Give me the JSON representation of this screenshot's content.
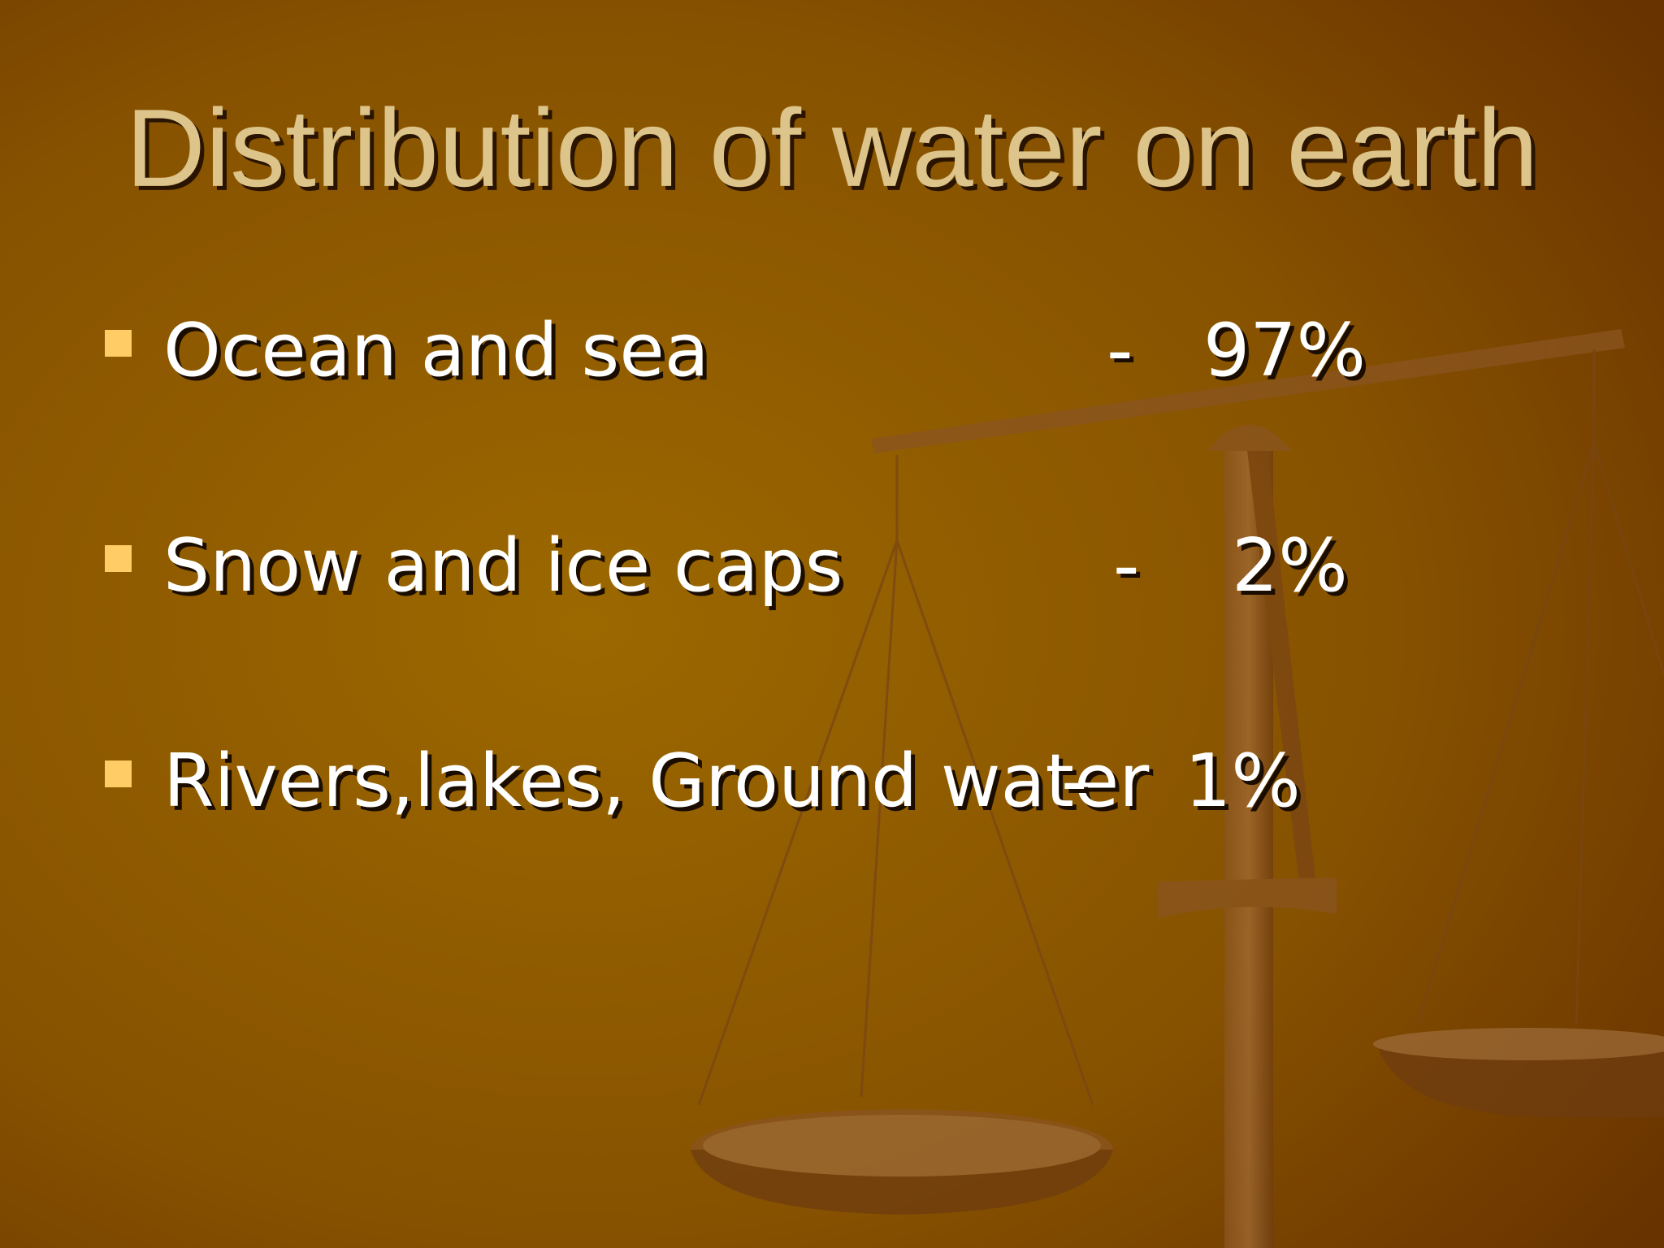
{
  "title": "Distribution of water on earth",
  "items": [
    {
      "label": "Ocean and sea",
      "separator": "-",
      "value": "97%"
    },
    {
      "label": "Snow and ice caps",
      "separator": "-",
      "value": "2%"
    },
    {
      "label": "Rivers,lakes, Ground water",
      "separator": "-",
      "value": "1%"
    }
  ]
}
